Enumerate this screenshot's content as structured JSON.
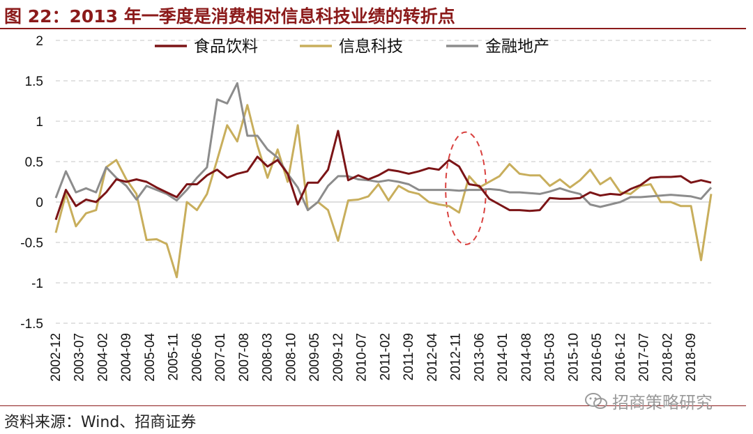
{
  "header": {
    "title": "图 22：2013 年一季度是消费相对信息科技业绩的转折点"
  },
  "footer": {
    "source": "资料来源：Wind、招商证券",
    "watermark": "招商策略研究",
    "watermark_icon": "wechat-icon"
  },
  "colors": {
    "food_beverage": "#7B1416",
    "info_tech": "#C8AE5C",
    "finance_property": "#8C8C8C",
    "accent": "#8B1A1A",
    "annotation": "#D9413F"
  },
  "chart_data": {
    "type": "line",
    "title": "图 22：2013 年一季度是消费相对信息科技业绩的转折点",
    "xlabel": "",
    "ylabel": "",
    "ylim": [
      -1.5,
      2
    ],
    "yticks": [
      "2",
      "1.5",
      "1",
      "0.5",
      "0",
      "-0.5",
      "-1",
      "-1.5"
    ],
    "ytick_values": [
      2,
      1.5,
      1,
      0.5,
      0,
      -0.5,
      -1,
      -1.5
    ],
    "xtick_labels": [
      "2002-12",
      "2003-07",
      "2004-02",
      "2004-09",
      "2005-04",
      "2005-11",
      "2006-06",
      "2007-01",
      "2007-08",
      "2008-03",
      "2008-10",
      "2009-05",
      "2009-12",
      "2010-07",
      "2011-02",
      "2011-09",
      "2012-04",
      "2012-11",
      "2013-06",
      "2014-01",
      "2014-08",
      "2015-03",
      "2015-10",
      "2016-05",
      "2016-12",
      "2017-07",
      "2018-02",
      "2018-09"
    ],
    "grid": "horizontal-dashed",
    "legend": "top",
    "annotation": "dashed ellipse around 2012-11 to 2013-06",
    "series": [
      {
        "name": "食品饮料",
        "points": [
          [
            "2002-12",
            -0.22
          ],
          [
            "2003-03",
            0.15
          ],
          [
            "2003-06",
            -0.05
          ],
          [
            "2003-09",
            0.03
          ],
          [
            "2003-12",
            0.0
          ],
          [
            "2004-03",
            0.12
          ],
          [
            "2004-06",
            0.28
          ],
          [
            "2004-09",
            0.25
          ],
          [
            "2004-12",
            0.28
          ],
          [
            "2005-03",
            0.25
          ],
          [
            "2005-06",
            0.18
          ],
          [
            "2005-09",
            0.12
          ],
          [
            "2005-12",
            0.06
          ],
          [
            "2006-03",
            0.22
          ],
          [
            "2006-06",
            0.22
          ],
          [
            "2006-09",
            0.33
          ],
          [
            "2006-12",
            0.4
          ],
          [
            "2007-03",
            0.3
          ],
          [
            "2007-06",
            0.35
          ],
          [
            "2007-09",
            0.38
          ],
          [
            "2007-12",
            0.56
          ],
          [
            "2008-03",
            0.44
          ],
          [
            "2008-06",
            0.52
          ],
          [
            "2008-09",
            0.35
          ],
          [
            "2008-12",
            -0.03
          ],
          [
            "2009-03",
            0.24
          ],
          [
            "2009-06",
            0.24
          ],
          [
            "2009-09",
            0.4
          ],
          [
            "2009-12",
            0.88
          ],
          [
            "2010-03",
            0.27
          ],
          [
            "2010-06",
            0.33
          ],
          [
            "2010-09",
            0.28
          ],
          [
            "2010-12",
            0.33
          ],
          [
            "2011-03",
            0.4
          ],
          [
            "2011-06",
            0.38
          ],
          [
            "2011-09",
            0.35
          ],
          [
            "2011-12",
            0.38
          ],
          [
            "2012-03",
            0.42
          ],
          [
            "2012-06",
            0.4
          ],
          [
            "2012-09",
            0.52
          ],
          [
            "2012-12",
            0.44
          ],
          [
            "2013-03",
            0.22
          ],
          [
            "2013-06",
            0.2
          ],
          [
            "2013-09",
            0.04
          ],
          [
            "2013-12",
            -0.03
          ],
          [
            "2014-03",
            -0.1
          ],
          [
            "2014-06",
            -0.1
          ],
          [
            "2014-09",
            -0.11
          ],
          [
            "2014-12",
            -0.1
          ],
          [
            "2015-03",
            0.05
          ],
          [
            "2015-06",
            0.04
          ],
          [
            "2015-09",
            0.04
          ],
          [
            "2015-12",
            0.05
          ],
          [
            "2016-03",
            0.12
          ],
          [
            "2016-06",
            0.08
          ],
          [
            "2016-09",
            0.1
          ],
          [
            "2016-12",
            0.09
          ],
          [
            "2017-03",
            0.16
          ],
          [
            "2017-06",
            0.21
          ],
          [
            "2017-09",
            0.3
          ],
          [
            "2017-12",
            0.31
          ],
          [
            "2018-03",
            0.31
          ],
          [
            "2018-06",
            0.32
          ],
          [
            "2018-09",
            0.24
          ],
          [
            "2018-12",
            0.27
          ],
          [
            "2019-03",
            0.24
          ]
        ]
      },
      {
        "name": "信息科技",
        "points": [
          [
            "2002-12",
            -0.38
          ],
          [
            "2003-03",
            0.1
          ],
          [
            "2003-06",
            -0.3
          ],
          [
            "2003-09",
            -0.14
          ],
          [
            "2003-12",
            -0.1
          ],
          [
            "2004-03",
            0.43
          ],
          [
            "2004-06",
            0.52
          ],
          [
            "2004-09",
            0.28
          ],
          [
            "2004-12",
            0.1
          ],
          [
            "2005-03",
            -0.47
          ],
          [
            "2005-06",
            -0.46
          ],
          [
            "2005-09",
            -0.52
          ],
          [
            "2005-12",
            -0.93
          ],
          [
            "2006-03",
            0.0
          ],
          [
            "2006-06",
            -0.1
          ],
          [
            "2006-09",
            0.1
          ],
          [
            "2006-12",
            0.52
          ],
          [
            "2007-03",
            0.95
          ],
          [
            "2007-06",
            0.75
          ],
          [
            "2007-09",
            1.2
          ],
          [
            "2007-12",
            0.7
          ],
          [
            "2008-03",
            0.3
          ],
          [
            "2008-06",
            0.65
          ],
          [
            "2008-09",
            0.25
          ],
          [
            "2008-12",
            0.95
          ],
          [
            "2009-03",
            -0.1
          ],
          [
            "2009-06",
            0.0
          ],
          [
            "2009-09",
            -0.1
          ],
          [
            "2009-12",
            -0.48
          ],
          [
            "2010-03",
            0.02
          ],
          [
            "2010-06",
            0.03
          ],
          [
            "2010-09",
            0.07
          ],
          [
            "2010-12",
            0.22
          ],
          [
            "2011-03",
            0.02
          ],
          [
            "2011-06",
            0.2
          ],
          [
            "2011-09",
            0.13
          ],
          [
            "2011-12",
            0.1
          ],
          [
            "2012-03",
            0.0
          ],
          [
            "2012-06",
            -0.03
          ],
          [
            "2012-09",
            -0.05
          ],
          [
            "2012-12",
            -0.13
          ],
          [
            "2013-03",
            0.32
          ],
          [
            "2013-06",
            0.18
          ],
          [
            "2013-09",
            0.25
          ],
          [
            "2013-12",
            0.32
          ],
          [
            "2014-03",
            0.47
          ],
          [
            "2014-06",
            0.35
          ],
          [
            "2014-09",
            0.33
          ],
          [
            "2014-12",
            0.33
          ],
          [
            "2015-03",
            0.2
          ],
          [
            "2015-06",
            0.28
          ],
          [
            "2015-09",
            0.18
          ],
          [
            "2015-12",
            0.27
          ],
          [
            "2016-03",
            0.4
          ],
          [
            "2016-06",
            0.22
          ],
          [
            "2016-09",
            0.3
          ],
          [
            "2016-12",
            0.12
          ],
          [
            "2017-03",
            0.1
          ],
          [
            "2017-06",
            0.2
          ],
          [
            "2017-09",
            0.22
          ],
          [
            "2017-12",
            0.0
          ],
          [
            "2018-03",
            0.0
          ],
          [
            "2018-06",
            -0.05
          ],
          [
            "2018-09",
            -0.05
          ],
          [
            "2018-12",
            -0.72
          ],
          [
            "2019-03",
            0.1
          ]
        ]
      },
      {
        "name": "金融地产",
        "points": [
          [
            "2002-12",
            0.05
          ],
          [
            "2003-03",
            0.38
          ],
          [
            "2003-06",
            0.12
          ],
          [
            "2003-09",
            0.17
          ],
          [
            "2003-12",
            0.12
          ],
          [
            "2004-03",
            0.43
          ],
          [
            "2004-06",
            0.3
          ],
          [
            "2004-09",
            0.2
          ],
          [
            "2004-12",
            0.03
          ],
          [
            "2005-03",
            0.2
          ],
          [
            "2005-06",
            0.15
          ],
          [
            "2005-09",
            0.1
          ],
          [
            "2005-12",
            0.02
          ],
          [
            "2006-03",
            0.15
          ],
          [
            "2006-06",
            0.3
          ],
          [
            "2006-09",
            0.43
          ],
          [
            "2006-12",
            1.27
          ],
          [
            "2007-03",
            1.22
          ],
          [
            "2007-06",
            1.47
          ],
          [
            "2007-09",
            0.82
          ],
          [
            "2007-12",
            0.82
          ],
          [
            "2008-03",
            0.65
          ],
          [
            "2008-06",
            0.55
          ],
          [
            "2008-09",
            0.35
          ],
          [
            "2008-12",
            0.18
          ],
          [
            "2009-03",
            -0.1
          ],
          [
            "2009-06",
            0.0
          ],
          [
            "2009-09",
            0.2
          ],
          [
            "2009-12",
            0.32
          ],
          [
            "2010-03",
            0.32
          ],
          [
            "2010-06",
            0.28
          ],
          [
            "2010-09",
            0.27
          ],
          [
            "2010-12",
            0.25
          ],
          [
            "2011-03",
            0.27
          ],
          [
            "2011-06",
            0.25
          ],
          [
            "2011-09",
            0.22
          ],
          [
            "2011-12",
            0.15
          ],
          [
            "2012-03",
            0.15
          ],
          [
            "2012-06",
            0.15
          ],
          [
            "2012-09",
            0.15
          ],
          [
            "2012-12",
            0.14
          ],
          [
            "2013-03",
            0.15
          ],
          [
            "2013-06",
            0.15
          ],
          [
            "2013-09",
            0.16
          ],
          [
            "2013-12",
            0.15
          ],
          [
            "2014-03",
            0.12
          ],
          [
            "2014-06",
            0.12
          ],
          [
            "2014-09",
            0.11
          ],
          [
            "2014-12",
            0.1
          ],
          [
            "2015-03",
            0.13
          ],
          [
            "2015-06",
            0.17
          ],
          [
            "2015-09",
            0.13
          ],
          [
            "2015-12",
            0.1
          ],
          [
            "2016-03",
            -0.03
          ],
          [
            "2016-06",
            -0.06
          ],
          [
            "2016-09",
            -0.03
          ],
          [
            "2016-12",
            0.0
          ],
          [
            "2017-03",
            0.06
          ],
          [
            "2017-06",
            0.06
          ],
          [
            "2017-09",
            0.07
          ],
          [
            "2017-12",
            0.08
          ],
          [
            "2018-03",
            0.09
          ],
          [
            "2018-06",
            0.08
          ],
          [
            "2018-09",
            0.07
          ],
          [
            "2018-12",
            0.04
          ],
          [
            "2019-03",
            0.18
          ]
        ]
      }
    ]
  }
}
